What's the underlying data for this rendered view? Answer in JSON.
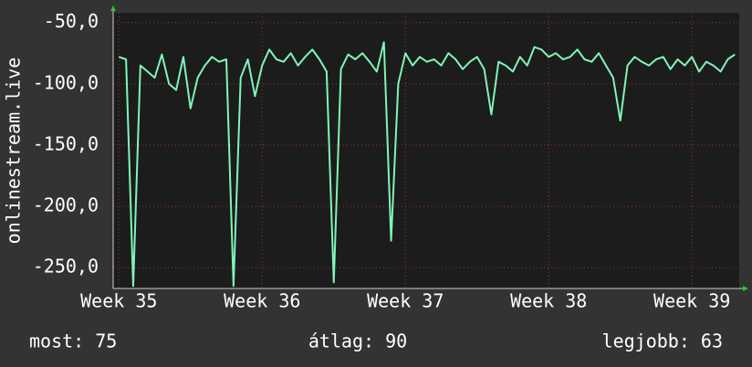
{
  "chart_data": {
    "type": "line",
    "y_label": "onlinestream.live",
    "x": [
      35.0,
      35.05,
      35.1,
      35.15,
      35.2,
      35.25,
      35.3,
      35.35,
      35.4,
      35.45,
      35.5,
      35.55,
      35.6,
      35.65,
      35.7,
      35.75,
      35.8,
      35.85,
      35.9,
      35.95,
      36.0,
      36.05,
      36.1,
      36.15,
      36.2,
      36.25,
      36.3,
      36.35,
      36.4,
      36.45,
      36.5,
      36.55,
      36.6,
      36.65,
      36.7,
      36.75,
      36.8,
      36.85,
      36.9,
      36.95,
      37.0,
      37.05,
      37.1,
      37.15,
      37.2,
      37.25,
      37.3,
      37.35,
      37.4,
      37.45,
      37.5,
      37.55,
      37.6,
      37.65,
      37.7,
      37.75,
      37.8,
      37.85,
      37.9,
      37.95,
      38.0,
      38.05,
      38.1,
      38.15,
      38.2,
      38.25,
      38.3,
      38.35,
      38.4,
      38.45,
      38.5,
      38.55,
      38.6,
      38.65,
      38.7,
      38.75,
      38.8,
      38.85,
      38.9,
      38.95,
      39.0,
      39.05,
      39.1,
      39.15,
      39.2,
      39.25,
      39.3
    ],
    "series": [
      {
        "color": "#80f5b8",
        "values": [
          -78,
          -80,
          -265,
          -85,
          -90,
          -95,
          -76,
          -100,
          -105,
          -78,
          -120,
          -95,
          -85,
          -78,
          -82,
          -80,
          -265,
          -95,
          -80,
          -110,
          -85,
          -72,
          -80,
          -82,
          -75,
          -85,
          -78,
          -72,
          -80,
          -90,
          -262,
          -88,
          -76,
          -80,
          -75,
          -82,
          -90,
          -66,
          -228,
          -100,
          -75,
          -85,
          -78,
          -82,
          -80,
          -85,
          -75,
          -80,
          -88,
          -82,
          -78,
          -88,
          -125,
          -82,
          -85,
          -90,
          -78,
          -85,
          -70,
          -72,
          -78,
          -75,
          -80,
          -78,
          -72,
          -80,
          -82,
          -75,
          -85,
          -95,
          -130,
          -85,
          -78,
          -82,
          -85,
          -80,
          -78,
          -88,
          -80,
          -85,
          -78,
          -90,
          -82,
          -85,
          -90,
          -80,
          -76
        ]
      }
    ],
    "xlim": [
      34.96,
      39.33
    ],
    "ylim": [
      -267,
      -42
    ],
    "xticks": [
      {
        "value": 35,
        "label": "Week 35"
      },
      {
        "value": 36,
        "label": "Week 36"
      },
      {
        "value": 37,
        "label": "Week 37"
      },
      {
        "value": 38,
        "label": "Week 38"
      },
      {
        "value": 39,
        "label": "Week 39"
      }
    ],
    "yticks": [
      {
        "value": -50,
        "label": "-50,0"
      },
      {
        "value": -100,
        "label": "-100,0"
      },
      {
        "value": -150,
        "label": "-150,0"
      },
      {
        "value": -200,
        "label": "-200,0"
      },
      {
        "value": -250,
        "label": "-250,0"
      }
    ],
    "grid": true,
    "stats": [
      "most: 75",
      "átlag: 90",
      "legjobb: 63"
    ]
  }
}
